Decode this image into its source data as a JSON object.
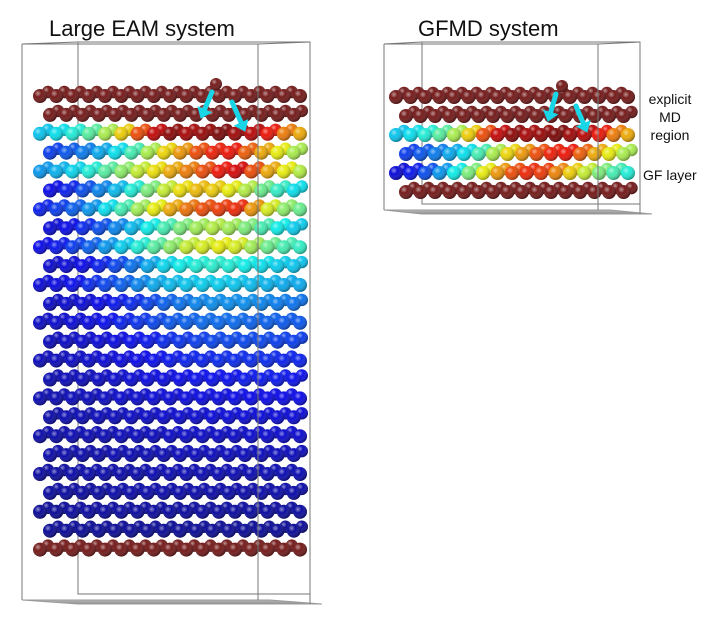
{
  "panels": [
    {
      "id": "eam",
      "title": "Large EAM system",
      "layers": [
        {
          "kind": "fixed"
        },
        {
          "kind": "fixed"
        },
        {
          "kind": "color",
          "values": [
            0.33,
            0.36,
            0.4,
            0.46,
            0.55,
            0.66,
            0.8,
            0.92,
            0.98,
            0.95,
            0.97,
            1.0,
            0.96,
            0.93,
            0.86,
            0.75,
            0.7
          ]
        },
        {
          "kind": "color",
          "values": [
            0.18,
            0.21,
            0.25,
            0.3,
            0.36,
            0.44,
            0.55,
            0.65,
            0.72,
            0.8,
            0.85,
            0.86,
            0.78,
            0.7,
            0.62,
            0.55,
            0.5
          ]
        },
        {
          "kind": "color",
          "values": [
            0.28,
            0.31,
            0.35,
            0.4,
            0.46,
            0.52,
            0.58,
            0.64,
            0.7,
            0.75,
            0.8,
            0.86,
            0.9,
            0.8,
            0.7,
            0.62,
            0.56
          ]
        },
        {
          "kind": "color",
          "values": [
            0.12,
            0.15,
            0.2,
            0.26,
            0.32,
            0.4,
            0.5,
            0.58,
            0.64,
            0.68,
            0.66,
            0.62,
            0.56,
            0.48,
            0.42,
            0.36,
            0.32
          ]
        },
        {
          "kind": "color",
          "values": [
            0.15,
            0.18,
            0.22,
            0.28,
            0.36,
            0.44,
            0.54,
            0.62,
            0.7,
            0.76,
            0.8,
            0.82,
            0.84,
            0.72,
            0.6,
            0.52,
            0.48
          ]
        },
        {
          "kind": "color",
          "values": [
            0.1,
            0.12,
            0.16,
            0.2,
            0.26,
            0.32,
            0.38,
            0.44,
            0.5,
            0.54,
            0.56,
            0.54,
            0.5,
            0.44,
            0.38,
            0.34,
            0.3
          ]
        },
        {
          "kind": "color",
          "values": [
            0.12,
            0.14,
            0.18,
            0.22,
            0.28,
            0.34,
            0.4,
            0.46,
            0.52,
            0.58,
            0.6,
            0.62,
            0.6,
            0.54,
            0.48,
            0.44,
            0.42
          ]
        },
        {
          "kind": "color",
          "values": [
            0.09,
            0.1,
            0.12,
            0.15,
            0.19,
            0.24,
            0.3,
            0.35,
            0.38,
            0.4,
            0.41,
            0.4,
            0.38,
            0.36,
            0.34,
            0.33,
            0.32
          ]
        },
        {
          "kind": "color",
          "values": [
            0.1,
            0.11,
            0.13,
            0.16,
            0.19,
            0.22,
            0.26,
            0.3,
            0.32,
            0.33,
            0.34,
            0.34,
            0.33,
            0.32,
            0.31,
            0.3,
            0.3
          ]
        },
        {
          "kind": "color",
          "values": [
            0.08,
            0.09,
            0.1,
            0.12,
            0.14,
            0.16,
            0.19,
            0.22,
            0.24,
            0.26,
            0.27,
            0.27,
            0.27,
            0.26,
            0.25,
            0.24,
            0.24
          ]
        },
        {
          "kind": "color",
          "values": [
            0.08,
            0.09,
            0.1,
            0.11,
            0.13,
            0.15,
            0.17,
            0.19,
            0.21,
            0.22,
            0.23,
            0.23,
            0.23,
            0.22,
            0.22,
            0.21,
            0.21
          ]
        },
        {
          "kind": "color",
          "values": [
            0.07,
            0.08,
            0.09,
            0.1,
            0.11,
            0.13,
            0.14,
            0.16,
            0.17,
            0.18,
            0.19,
            0.19,
            0.19,
            0.19,
            0.18,
            0.18,
            0.18
          ]
        },
        {
          "kind": "color",
          "values": [
            0.07,
            0.07,
            0.08,
            0.09,
            0.1,
            0.11,
            0.12,
            0.13,
            0.14,
            0.15,
            0.15,
            0.16,
            0.16,
            0.16,
            0.16,
            0.15,
            0.15
          ]
        },
        {
          "kind": "color",
          "values": [
            0.06,
            0.07,
            0.07,
            0.08,
            0.09,
            0.1,
            0.11,
            0.11,
            0.12,
            0.13,
            0.13,
            0.13,
            0.14,
            0.14,
            0.14,
            0.13,
            0.13
          ]
        },
        {
          "kind": "color",
          "values": [
            0.06,
            0.06,
            0.07,
            0.07,
            0.08,
            0.09,
            0.09,
            0.1,
            0.1,
            0.11,
            0.11,
            0.11,
            0.12,
            0.12,
            0.12,
            0.12,
            0.12
          ]
        },
        {
          "kind": "color",
          "values": [
            0.05,
            0.06,
            0.06,
            0.07,
            0.07,
            0.08,
            0.08,
            0.09,
            0.09,
            0.09,
            0.1,
            0.1,
            0.1,
            0.1,
            0.1,
            0.1,
            0.1
          ]
        },
        {
          "kind": "color",
          "values": [
            0.05,
            0.05,
            0.06,
            0.06,
            0.06,
            0.07,
            0.07,
            0.07,
            0.08,
            0.08,
            0.08,
            0.08,
            0.08,
            0.09,
            0.09,
            0.09,
            0.09
          ]
        },
        {
          "kind": "color",
          "values": [
            0.05,
            0.05,
            0.05,
            0.05,
            0.06,
            0.06,
            0.06,
            0.06,
            0.07,
            0.07,
            0.07,
            0.07,
            0.07,
            0.07,
            0.07,
            0.07,
            0.07
          ]
        },
        {
          "kind": "color",
          "values": [
            0.04,
            0.04,
            0.05,
            0.05,
            0.05,
            0.05,
            0.05,
            0.06,
            0.06,
            0.06,
            0.06,
            0.06,
            0.06,
            0.06,
            0.06,
            0.06,
            0.06
          ]
        },
        {
          "kind": "color",
          "values": [
            0.04,
            0.04,
            0.04,
            0.04,
            0.05,
            0.05,
            0.05,
            0.05,
            0.05,
            0.05,
            0.05,
            0.05,
            0.05,
            0.05,
            0.05,
            0.05,
            0.05
          ]
        },
        {
          "kind": "color",
          "values": [
            0.03,
            0.03,
            0.04,
            0.04,
            0.04,
            0.04,
            0.04,
            0.04,
            0.04,
            0.04,
            0.04,
            0.04,
            0.04,
            0.04,
            0.04,
            0.04,
            0.04
          ]
        },
        {
          "kind": "color",
          "values": [
            0.03,
            0.03,
            0.03,
            0.03,
            0.03,
            0.03,
            0.03,
            0.03,
            0.03,
            0.03,
            0.03,
            0.03,
            0.03,
            0.03,
            0.03,
            0.03,
            0.03
          ]
        },
        {
          "kind": "fixed"
        }
      ],
      "adatom": true
    },
    {
      "id": "gfmd",
      "title": "GFMD system",
      "layers": [
        {
          "kind": "fixed"
        },
        {
          "kind": "fixed"
        },
        {
          "kind": "color",
          "values": [
            0.33,
            0.36,
            0.4,
            0.46,
            0.55,
            0.66,
            0.8,
            0.92,
            0.98,
            0.95,
            0.97,
            1.0,
            0.96,
            0.93,
            0.86,
            0.75,
            0.7
          ]
        },
        {
          "kind": "color",
          "values": [
            0.18,
            0.21,
            0.25,
            0.3,
            0.36,
            0.44,
            0.55,
            0.65,
            0.72,
            0.8,
            0.85,
            0.86,
            0.78,
            0.7,
            0.62,
            0.55,
            0.5
          ]
        },
        {
          "kind": "color",
          "values": [
            0.1,
            0.14,
            0.2,
            0.28,
            0.38,
            0.5,
            0.62,
            0.72,
            0.8,
            0.84,
            0.82,
            0.74,
            0.66,
            0.58,
            0.5,
            0.44,
            0.4
          ]
        },
        {
          "kind": "fixed"
        }
      ],
      "adatom": true
    }
  ],
  "labels": {
    "md_region": [
      "explicit",
      "MD",
      "region"
    ],
    "gf_layer": "GF layer"
  },
  "colors": {
    "fixed_atom": "#6e1010",
    "arrow": "#18d6e6",
    "box_line": "#777777",
    "box_floor": "#9a9a9a"
  }
}
